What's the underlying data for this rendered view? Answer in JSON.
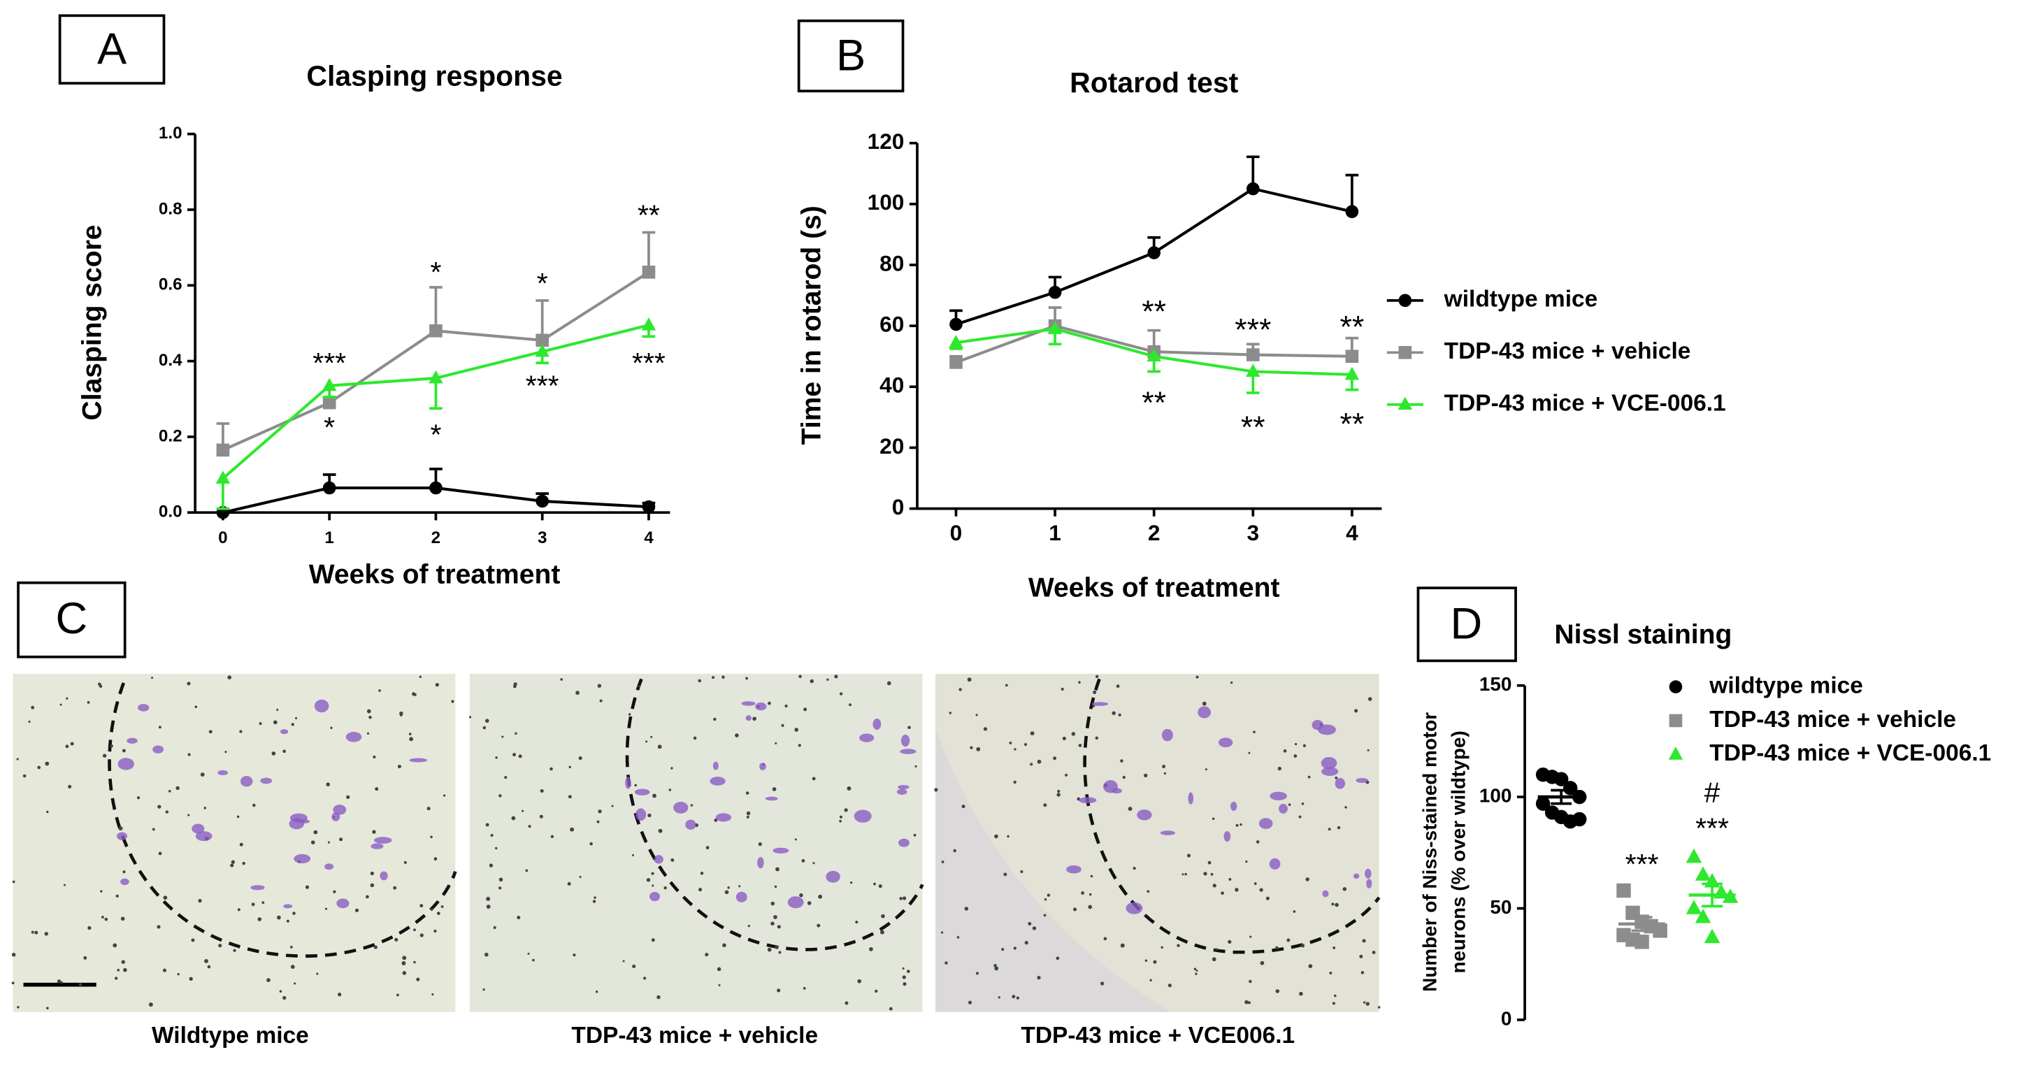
{
  "panels": {
    "a": "A",
    "b": "B",
    "c": "C",
    "d": "D"
  },
  "micrographs": {
    "captions": [
      "Wildtype mice",
      "TDP-43 mice + vehicle",
      "TDP-43 mice + VCE006.1"
    ]
  },
  "chart_data": [
    {
      "type": "line",
      "title": "Clasping response",
      "x_label": "Weeks of treatment",
      "y_label": "Clasping score",
      "xlim": [
        -0.2,
        4.2
      ],
      "xticks": [
        0,
        1,
        2,
        3,
        4
      ],
      "ylim": [
        0,
        1
      ],
      "yticks": [
        {
          "value": 0,
          "label": "0.0"
        },
        0.2,
        0.4,
        0.6,
        0.8,
        {
          "value": 1,
          "label": "1.0"
        }
      ],
      "x": [
        0,
        1,
        2,
        3,
        4
      ],
      "series": [
        {
          "name": "wildtype mice",
          "color": "#000000",
          "marker": "circle",
          "error_side": "up",
          "values": [
            0,
            0.065,
            0.065,
            0.03,
            0.015
          ],
          "errors": [
            0,
            0.035,
            0.05,
            0.02,
            0.01
          ]
        },
        {
          "name": "TDP-43 mice + vehicle",
          "color": "#8c8c8c",
          "marker": "square",
          "error_side": "up",
          "values": [
            0.165,
            0.29,
            0.48,
            0.455,
            0.635
          ],
          "errors": [
            0.07,
            0.015,
            0.115,
            0.105,
            0.105
          ]
        },
        {
          "name": "TDP-43 mice + VCE-006.1",
          "color": "#2ee82e",
          "marker": "triangle",
          "error_side": "down",
          "values": [
            0.09,
            0.335,
            0.355,
            0.425,
            0.495
          ],
          "errors": [
            0.08,
            0.03,
            0.08,
            0.03,
            0.03
          ]
        }
      ],
      "annotations": [
        {
          "text": "***",
          "x": 1,
          "y": 0.39
        },
        {
          "text": "*",
          "x": 1,
          "y": 0.22
        },
        {
          "text": "*",
          "x": 2,
          "y": 0.63
        },
        {
          "text": "*",
          "x": 2,
          "y": 0.2
        },
        {
          "text": "*",
          "x": 3,
          "y": 0.6
        },
        {
          "text": "***",
          "x": 3,
          "y": 0.33
        },
        {
          "text": "**",
          "x": 4,
          "y": 0.78
        },
        {
          "text": "***",
          "x": 4,
          "y": 0.39
        }
      ]
    },
    {
      "type": "line",
      "title": "Rotarod test",
      "x_label": "Weeks of treatment",
      "y_label": "Time in rotarod (s)",
      "xlim": [
        -0.3,
        4.3
      ],
      "xticks": [
        0,
        1,
        2,
        3,
        4
      ],
      "ylim": [
        0,
        120
      ],
      "yticks": [
        0,
        20,
        40,
        60,
        80,
        100,
        120
      ],
      "x": [
        0,
        1,
        2,
        3,
        4
      ],
      "legend": "right",
      "series": [
        {
          "name": "wildtype mice",
          "color": "#000000",
          "marker": "circle",
          "error_side": "up",
          "values": [
            60.5,
            71,
            84,
            105,
            97.5
          ],
          "errors": [
            4.5,
            5,
            5,
            10.5,
            12
          ]
        },
        {
          "name": "TDP-43 mice + vehicle",
          "color": "#8c8c8c",
          "marker": "square",
          "error_side": "up",
          "values": [
            48,
            60,
            51.5,
            50.5,
            50
          ],
          "errors": [
            2,
            6,
            7,
            3.5,
            6
          ]
        },
        {
          "name": "TDP-43 mice + VCE-006.1",
          "color": "#2ee82e",
          "marker": "triangle",
          "error_side": "down",
          "values": [
            54.5,
            59,
            50,
            45,
            44
          ],
          "errors": [
            2,
            5,
            5,
            7,
            5
          ]
        }
      ],
      "annotations": [
        {
          "text": "**",
          "x": 2,
          "y": 64
        },
        {
          "text": "**",
          "x": 2,
          "y": 34
        },
        {
          "text": "***",
          "x": 3,
          "y": 58
        },
        {
          "text": "**",
          "x": 3,
          "y": 26
        },
        {
          "text": "**",
          "x": 4,
          "y": 59
        },
        {
          "text": "**",
          "x": 4,
          "y": 27
        }
      ]
    },
    {
      "type": "dot",
      "title": "Nissl staining",
      "y_label": [
        "Number of Niss-stained motor",
        "neurons (% over wildtype)"
      ],
      "ylim": [
        0,
        150
      ],
      "yticks": [
        0,
        50,
        100,
        150
      ],
      "legend": "top-right",
      "series": [
        {
          "name": "wildtype mice",
          "color": "#000000",
          "marker": "circle",
          "values": [
            110,
            109,
            108,
            104,
            100,
            97,
            93,
            91,
            89,
            90
          ],
          "mean": 100,
          "sem": 3
        },
        {
          "name": "TDP-43 mice + vehicle",
          "color": "#8c8c8c",
          "marker": "square",
          "values": [
            58,
            48,
            44,
            42,
            40,
            38,
            36,
            35
          ],
          "mean": 43,
          "sem": 3
        },
        {
          "name": "TDP-43 mice + VCE-006.1",
          "color": "#2ee82e",
          "marker": "triangle",
          "values": [
            73,
            65,
            62,
            57,
            55,
            50,
            46,
            37
          ],
          "mean": 56,
          "sem": 5
        }
      ],
      "annotations": [
        {
          "text": "***",
          "x": 1,
          "y": 69
        },
        {
          "text": "***",
          "x": 2,
          "y": 85
        },
        {
          "text": "#",
          "x": 2,
          "y": 101
        }
      ]
    }
  ]
}
